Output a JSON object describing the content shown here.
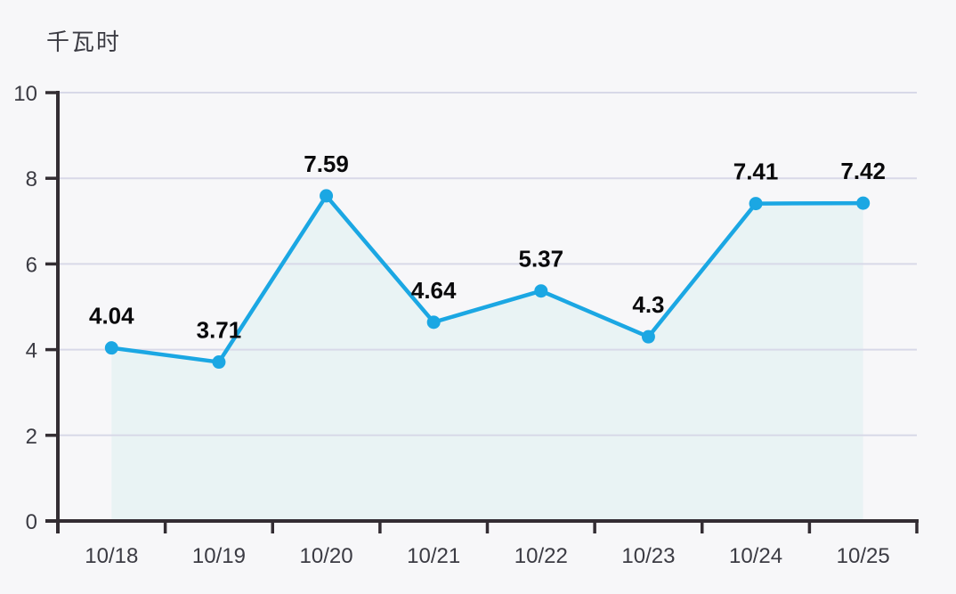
{
  "chart_data": {
    "type": "line",
    "title": "千瓦时",
    "categories": [
      "10/18",
      "10/19",
      "10/20",
      "10/21",
      "10/22",
      "10/23",
      "10/24",
      "10/25"
    ],
    "values": [
      4.04,
      3.71,
      7.59,
      4.64,
      5.37,
      4.3,
      7.41,
      7.42
    ],
    "value_labels": [
      "4.04",
      "3.71",
      "7.59",
      "4.64",
      "5.37",
      "4.3",
      "7.41",
      "7.42"
    ],
    "y_ticks": [
      0,
      2,
      4,
      6,
      8,
      10
    ],
    "ylim": [
      0,
      10
    ],
    "xlabel": "",
    "ylabel": "千瓦时",
    "grid": true,
    "area_fill": true,
    "legend": "none",
    "colors": {
      "line": "#1ba7e3",
      "marker": "#1ba7e3",
      "area": "#e9f3f4",
      "grid": "#d8d9e8",
      "axis": "#332d33",
      "tick_label": "#3b3b43",
      "value_label": "#0a0a0c",
      "title": "#3c3c44",
      "background": "#f7f7f9"
    }
  }
}
